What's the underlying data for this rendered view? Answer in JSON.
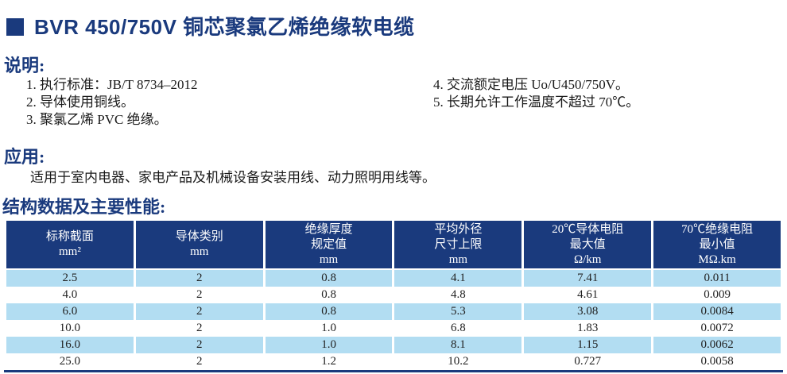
{
  "colors": {
    "accent": "#1a3a7d",
    "row_alt": "#b2ddf2",
    "header_text": "#ffffff"
  },
  "title": {
    "text": "BVR 450/750V 铜芯聚氯乙烯绝缘软电缆"
  },
  "description": {
    "heading": "说明:",
    "items_left": [
      "1. 执行标准：JB/T 8734–2012",
      "2. 导体使用铜线。",
      "3. 聚氯乙烯 PVC 绝缘。"
    ],
    "items_right": [
      "4. 交流额定电压 Uo/U450/750V。",
      "5. 长期允许工作温度不超过 70℃。"
    ]
  },
  "application": {
    "heading": "应用:",
    "text": "适用于室内电器、家电产品及机械设备安装用线、动力照明用线等。"
  },
  "table_section": {
    "heading": "结构数据及主要性能:",
    "columns": [
      {
        "lines": [
          "标称截面",
          "mm²"
        ]
      },
      {
        "lines": [
          "导体类别",
          "mm"
        ]
      },
      {
        "lines": [
          "绝缘厚度",
          "规定值",
          "mm"
        ]
      },
      {
        "lines": [
          "平均外径",
          "尺寸上限",
          "mm"
        ]
      },
      {
        "lines": [
          "20℃导体电阻",
          "最大值",
          "Ω/km"
        ]
      },
      {
        "lines": [
          "70℃绝缘电阻",
          "最小值",
          "MΩ.km"
        ]
      }
    ],
    "rows": [
      [
        "2.5",
        "2",
        "0.8",
        "4.1",
        "7.41",
        "0.011"
      ],
      [
        "4.0",
        "2",
        "0.8",
        "4.8",
        "4.61",
        "0.009"
      ],
      [
        "6.0",
        "2",
        "0.8",
        "5.3",
        "3.08",
        "0.0084"
      ],
      [
        "10.0",
        "2",
        "1.0",
        "6.8",
        "1.83",
        "0.0072"
      ],
      [
        "16.0",
        "2",
        "1.0",
        "8.1",
        "1.15",
        "0.0062"
      ],
      [
        "25.0",
        "2",
        "1.2",
        "10.2",
        "0.727",
        "0.0058"
      ]
    ]
  }
}
